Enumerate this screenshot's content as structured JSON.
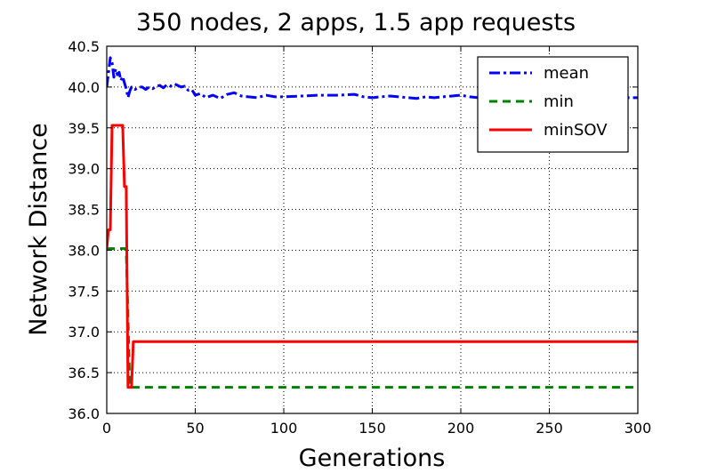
{
  "chart_data": {
    "type": "line",
    "title": "350 nodes, 2 apps, 1.5 app requests",
    "xlabel": "Generations",
    "ylabel": "Network Distance",
    "xlim": [
      0,
      300
    ],
    "ylim": [
      36.0,
      40.5
    ],
    "xticks": [
      0,
      50,
      100,
      150,
      200,
      250,
      300
    ],
    "xtick_labels": [
      "0",
      "50",
      "100",
      "150",
      "200",
      "250",
      "300"
    ],
    "yticks": [
      36.0,
      36.5,
      37.0,
      37.5,
      38.0,
      38.5,
      39.0,
      39.5,
      40.0,
      40.5
    ],
    "ytick_labels": [
      "36.0",
      "36.5",
      "37.0",
      "37.5",
      "38.0",
      "38.5",
      "39.0",
      "39.5",
      "40.0",
      "40.5"
    ],
    "grid": true,
    "legend_position": "top-right",
    "series": [
      {
        "name": "mean",
        "color": "#0000ff",
        "dash": "dashdot",
        "x": [
          0,
          1,
          2,
          3,
          4,
          5,
          6,
          7,
          8,
          9,
          10,
          11,
          12,
          13,
          14,
          16,
          18,
          20,
          22,
          24,
          26,
          28,
          30,
          32,
          34,
          36,
          38,
          40,
          42,
          44,
          46,
          48,
          50,
          53,
          56,
          60,
          64,
          68,
          72,
          76,
          80,
          85,
          90,
          95,
          100,
          110,
          120,
          130,
          140,
          145,
          150,
          155,
          160,
          165,
          170,
          175,
          180,
          185,
          190,
          195,
          200,
          205,
          210,
          220,
          230,
          240,
          250,
          260,
          270,
          280,
          290,
          300
        ],
        "y": [
          40.0,
          40.18,
          40.36,
          40.3,
          40.12,
          40.22,
          40.15,
          40.18,
          40.08,
          40.13,
          40.05,
          39.98,
          39.87,
          39.95,
          40.0,
          39.97,
          40.0,
          40.0,
          39.97,
          40.0,
          39.98,
          40.01,
          40.02,
          39.99,
          40.03,
          40.01,
          40.04,
          40.02,
          40.0,
          40.01,
          39.96,
          39.97,
          39.9,
          39.92,
          39.87,
          39.9,
          39.86,
          39.91,
          39.93,
          39.89,
          39.88,
          39.87,
          39.9,
          39.88,
          39.88,
          39.89,
          39.9,
          39.9,
          39.91,
          39.88,
          39.87,
          39.88,
          39.89,
          39.88,
          39.87,
          39.86,
          39.88,
          39.87,
          39.88,
          39.89,
          39.9,
          39.88,
          39.87,
          39.87,
          39.88,
          39.87,
          39.88,
          39.87,
          39.87,
          39.88,
          39.87,
          39.87
        ]
      },
      {
        "name": "min",
        "color": "#008000",
        "dash": "dashed",
        "x": [
          0,
          5,
          5.01,
          9,
          11,
          13,
          14,
          300
        ],
        "y": [
          38.02,
          38.02,
          38.02,
          38.02,
          38.02,
          36.32,
          36.32,
          36.32
        ]
      },
      {
        "name": "minSOV",
        "color": "#ff0000",
        "dash": "solid",
        "x": [
          0,
          1,
          2,
          3,
          4,
          5,
          6,
          7,
          8,
          9,
          10,
          11,
          12,
          13,
          14,
          15,
          300
        ],
        "y": [
          38.02,
          38.25,
          38.25,
          39.53,
          39.53,
          39.53,
          39.53,
          39.53,
          39.53,
          39.53,
          38.78,
          38.78,
          36.32,
          36.32,
          36.32,
          36.88,
          36.88
        ]
      }
    ]
  }
}
